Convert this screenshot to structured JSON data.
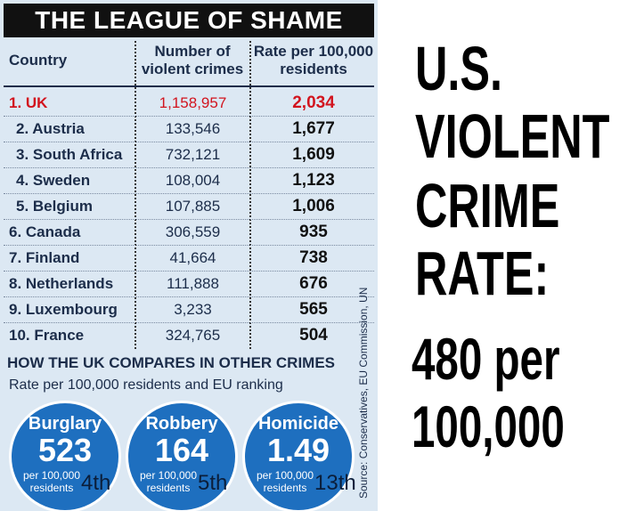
{
  "title": "THE LEAGUE OF SHAME",
  "table": {
    "columns": [
      "Country",
      "Number of violent crimes",
      "Rate per 100,000 residents"
    ],
    "rows": [
      [
        "1. UK",
        "1,158,957",
        "2,034"
      ],
      [
        "2. Austria",
        "133,546",
        "1,677"
      ],
      [
        "3. South Africa",
        "732,121",
        "1,609"
      ],
      [
        "4. Sweden",
        "108,004",
        "1,123"
      ],
      [
        "5. Belgium",
        "107,885",
        "1,006"
      ],
      [
        "6. Canada",
        "306,559",
        "935"
      ],
      [
        "7. Finland",
        "41,664",
        "738"
      ],
      [
        "8. Netherlands",
        "111,888",
        "676"
      ],
      [
        "9. Luxembourg",
        "3,233",
        "565"
      ],
      [
        "10. France",
        "324,765",
        "504"
      ]
    ]
  },
  "comparison": {
    "heading": "HOW THE UK COMPARES IN OTHER CRIMES",
    "subheading": "Rate per 100,000 residents and EU ranking",
    "items": [
      {
        "crime": "Burglary",
        "rate": "523",
        "unit": "per 100,000 residents",
        "rank": "4th"
      },
      {
        "crime": "Robbery",
        "rate": "164",
        "unit": "per 100,000 residents",
        "rank": "5th"
      },
      {
        "crime": "Homicide",
        "rate": "1.49",
        "unit": "per 100,000 residents",
        "rank": "13th"
      }
    ]
  },
  "source": "Source: Conservatives, EU Commission, UN",
  "headline": {
    "lines": [
      "U.S.",
      "VIOLENT",
      "CRIME",
      "RATE:"
    ],
    "figure_lines": [
      "480 per",
      "100,000"
    ]
  }
}
